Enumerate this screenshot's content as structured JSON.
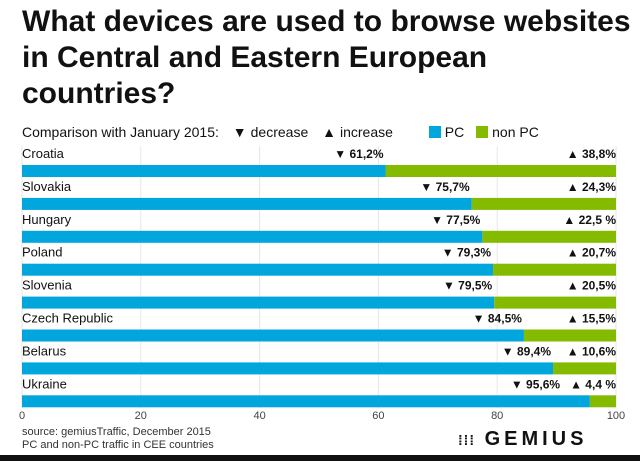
{
  "chart_data": {
    "type": "bar",
    "stacked": true,
    "orientation": "horizontal",
    "title": "What devices are used to browse websites in Central and Eastern European countries?",
    "subtitle": "Comparison with January 2015:",
    "change_legend": {
      "decrease": "decrease",
      "increase": "increase"
    },
    "categories": [
      "Croatia",
      "Slovakia",
      "Hungary",
      "Poland",
      "Slovenia",
      "Czech Republic",
      "Belarus",
      "Ukraine"
    ],
    "series": [
      {
        "name": "PC",
        "color": "#00a6dc",
        "values": [
          61.2,
          75.7,
          77.5,
          79.3,
          79.5,
          84.5,
          89.4,
          95.6
        ],
        "labels": [
          "61,2%",
          "75,7%",
          "77,5%",
          "79,3%",
          "79,5%",
          "84,5%",
          "89,4%",
          "95,6%"
        ],
        "change": "decrease"
      },
      {
        "name": "non PC",
        "color": "#84bb00",
        "values": [
          38.8,
          24.3,
          22.5,
          20.7,
          20.5,
          15.5,
          10.6,
          4.4
        ],
        "labels": [
          "38,8%",
          "24,3%",
          "22,5 %",
          "20,7%",
          "20,5%",
          "15,5%",
          "10,6%",
          "4,4 %"
        ],
        "change": "increase"
      }
    ],
    "xlim": [
      0,
      100
    ],
    "xticks": [
      "0",
      "20",
      "40",
      "60",
      "80",
      "100"
    ],
    "grid": true,
    "legend_position": "top-right"
  },
  "footer": {
    "source1": "source: gemiusTraffic, December 2015",
    "source2": "PC and non-PC traffic in CEE countries",
    "logo": "GEMIUS"
  }
}
